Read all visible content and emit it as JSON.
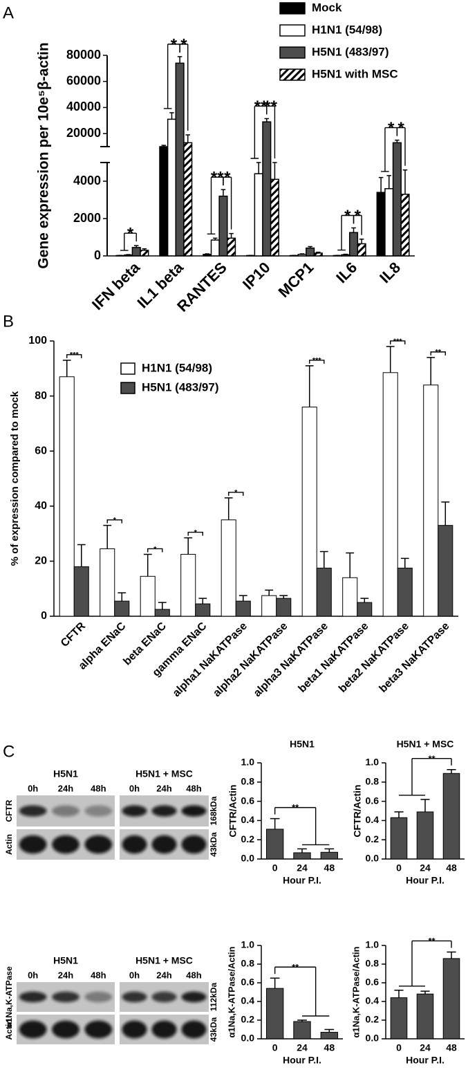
{
  "panel_labels": [
    "A",
    "B",
    "C"
  ],
  "chart_data": [
    {
      "type": "bar",
      "ylabel": "Gene expression per 10e⁵β-actin",
      "categories": [
        "IFN beta",
        "IL1 beta",
        "RANTES",
        "IP10",
        "MCP1",
        "IL6",
        "IL8"
      ],
      "series": [
        {
          "name": "Mock",
          "color": "#000000",
          "values": [
            20,
            10000,
            80,
            20,
            20,
            20,
            3400
          ],
          "errors": [
            10,
            1000,
            30,
            10,
            10,
            10,
            800
          ]
        },
        {
          "name": "H1N1 (54/98)",
          "color": "#ffffff",
          "values": [
            50,
            31000,
            850,
            4400,
            80,
            60,
            3600
          ],
          "errors": [
            20,
            5000,
            100,
            600,
            30,
            30,
            700
          ]
        },
        {
          "name": "H5N1 (483/97)",
          "color": "#4d4d4d",
          "values": [
            450,
            74000,
            3200,
            29000,
            420,
            1250,
            13000
          ],
          "errors": [
            100,
            5000,
            350,
            2500,
            80,
            250,
            2000
          ]
        },
        {
          "name": "H5N1 with MSC",
          "color": "#ffffff",
          "hatch": true,
          "values": [
            300,
            13000,
            950,
            4100,
            150,
            650,
            3300
          ],
          "errors": [
            80,
            6000,
            250,
            900,
            50,
            250,
            1300
          ]
        }
      ],
      "ylim": [
        0,
        80000
      ],
      "ybreak": [
        5000,
        10000
      ],
      "yticks": [
        0,
        2000,
        4000,
        20000,
        40000,
        60000,
        80000
      ],
      "legend": "upper right",
      "significance": [
        [
          {
            "label": "*",
            "groups": [
              [
                0,
                1
              ],
              [
                2
              ]
            ]
          }
        ],
        [
          {
            "label": "*",
            "groups": [
              [
                0,
                1
              ],
              [
                2
              ]
            ]
          },
          {
            "label": "*",
            "groups": [
              [
                2
              ],
              [
                3
              ]
            ]
          }
        ],
        [
          {
            "label": "**",
            "groups": [
              [
                0,
                1
              ],
              [
                2
              ]
            ]
          },
          {
            "label": "*",
            "groups": [
              [
                2
              ],
              [
                3
              ]
            ]
          }
        ],
        [
          {
            "label": "**",
            "groups": [
              [
                0,
                1
              ],
              [
                2
              ]
            ]
          },
          {
            "label": "**",
            "groups": [
              [
                2
              ],
              [
                3
              ]
            ]
          }
        ],
        null,
        [
          {
            "label": "*",
            "groups": [
              [
                0,
                1
              ],
              [
                2
              ]
            ]
          },
          {
            "label": "*",
            "groups": [
              [
                2
              ],
              [
                3
              ]
            ]
          }
        ],
        [
          {
            "label": "*",
            "groups": [
              [
                0,
                1
              ],
              [
                2
              ]
            ]
          },
          {
            "label": "*",
            "groups": [
              [
                2
              ],
              [
                3
              ]
            ]
          }
        ]
      ]
    },
    {
      "type": "bar",
      "ylabel": "% of expression compared to mock",
      "categories": [
        "CFTR",
        "alpha ENaC",
        "beta ENaC",
        "gamma ENaC",
        "alpha1 NaKATPase",
        "alpha2 NaKATPase",
        "alpha3 NaKATPase",
        "beta1 NaKATPase",
        "beta2 NaKATPase",
        "beta3 NaKATPase"
      ],
      "series": [
        {
          "name": "H1N1 (54/98)",
          "color": "#ffffff",
          "values": [
            87,
            24.5,
            14.5,
            22.5,
            35,
            7.5,
            76,
            14,
            88.5,
            84
          ],
          "errors": [
            6,
            8.5,
            8,
            6,
            8,
            2,
            15,
            9,
            9.5,
            10
          ]
        },
        {
          "name": "H5N1 (483/97)",
          "color": "#4d4d4d",
          "values": [
            18,
            5.5,
            2.5,
            4.5,
            5.5,
            6.5,
            17.5,
            5,
            17.5,
            33
          ],
          "errors": [
            8,
            3,
            2.5,
            2,
            2,
            1,
            6,
            1.5,
            3.5,
            8.5
          ]
        }
      ],
      "ylim": [
        0,
        100
      ],
      "yticks": [
        0,
        20,
        40,
        60,
        80,
        100
      ],
      "legend": "upper left",
      "significance": [
        "***",
        "*",
        "*",
        "*",
        "*",
        null,
        "***",
        null,
        "***",
        "**"
      ]
    },
    {
      "type": "bar",
      "title": "H5N1",
      "ylabel": "CFTR/Actin",
      "xlabel": "Hour P.I.",
      "categories": [
        "0",
        "24",
        "48"
      ],
      "values": [
        0.31,
        0.065,
        0.07
      ],
      "errors": [
        0.11,
        0.04,
        0.035
      ],
      "color": "#4d4d4d",
      "ylim": [
        0,
        1
      ],
      "yticks": [
        {
          "value": 0,
          "label": "0.0"
        },
        0.2,
        0.4,
        0.6,
        0.8,
        {
          "value": 1,
          "label": "1.0"
        }
      ],
      "significance": {
        "label": "**",
        "groups": [
          [
            0
          ],
          [
            1,
            2
          ]
        ]
      }
    },
    {
      "type": "bar",
      "title": "H5N1 + MSC",
      "ylabel": "CFTR/Actin",
      "xlabel": "Hour P.I.",
      "categories": [
        "0",
        "24",
        "48"
      ],
      "values": [
        0.43,
        0.49,
        0.89
      ],
      "errors": [
        0.06,
        0.13,
        0.04
      ],
      "color": "#4d4d4d",
      "ylim": [
        0,
        1
      ],
      "yticks": [
        {
          "value": 0,
          "label": "0.0"
        },
        0.2,
        0.4,
        0.6,
        0.8,
        {
          "value": 1,
          "label": "1.0"
        }
      ],
      "significance": {
        "label": "**",
        "groups": [
          [
            0,
            1
          ],
          [
            2
          ]
        ]
      }
    },
    {
      "type": "bar",
      "ylabel": "α1Na,K-ATPase/Actin",
      "xlabel": "Hour P.I.",
      "categories": [
        "0",
        "24",
        "48"
      ],
      "values": [
        0.54,
        0.185,
        0.07
      ],
      "errors": [
        0.11,
        0.015,
        0.03
      ],
      "color": "#4d4d4d",
      "ylim": [
        0,
        1
      ],
      "yticks": [
        {
          "value": 0,
          "label": "0.0"
        },
        0.2,
        0.4,
        0.6,
        0.8,
        {
          "value": 1,
          "label": "1.0"
        }
      ],
      "significance": {
        "label": "**",
        "groups": [
          [
            0
          ],
          [
            1,
            2
          ]
        ]
      }
    },
    {
      "type": "bar",
      "ylabel": "α1Na,K-ATPase/Actin",
      "xlabel": "Hour P.I.",
      "categories": [
        "0",
        "24",
        "48"
      ],
      "values": [
        0.44,
        0.48,
        0.86
      ],
      "errors": [
        0.08,
        0.03,
        0.07
      ],
      "color": "#4d4d4d",
      "ylim": [
        0,
        1
      ],
      "yticks": [
        {
          "value": 0,
          "label": "0.0"
        },
        0.2,
        0.4,
        0.6,
        0.8,
        {
          "value": 1,
          "label": "1.0"
        }
      ],
      "significance": {
        "label": "**",
        "groups": [
          [
            0,
            1
          ],
          [
            2
          ]
        ]
      }
    }
  ],
  "blots": [
    {
      "title_left": "H5N1",
      "title_right": "H5N1 + MSC",
      "times": [
        "0h",
        "24h",
        "48h"
      ],
      "target": "CFTR",
      "control": "Actin",
      "target_size": "168kDa",
      "control_size": "43kDa"
    },
    {
      "title_left": "H5N1",
      "title_right": "H5N1 + MSC",
      "times": [
        "0h",
        "24h",
        "48h"
      ],
      "target": "α1Na,K-ATPase",
      "control": "Actin",
      "target_size": "112kDa",
      "control_size": "43kDa"
    }
  ]
}
